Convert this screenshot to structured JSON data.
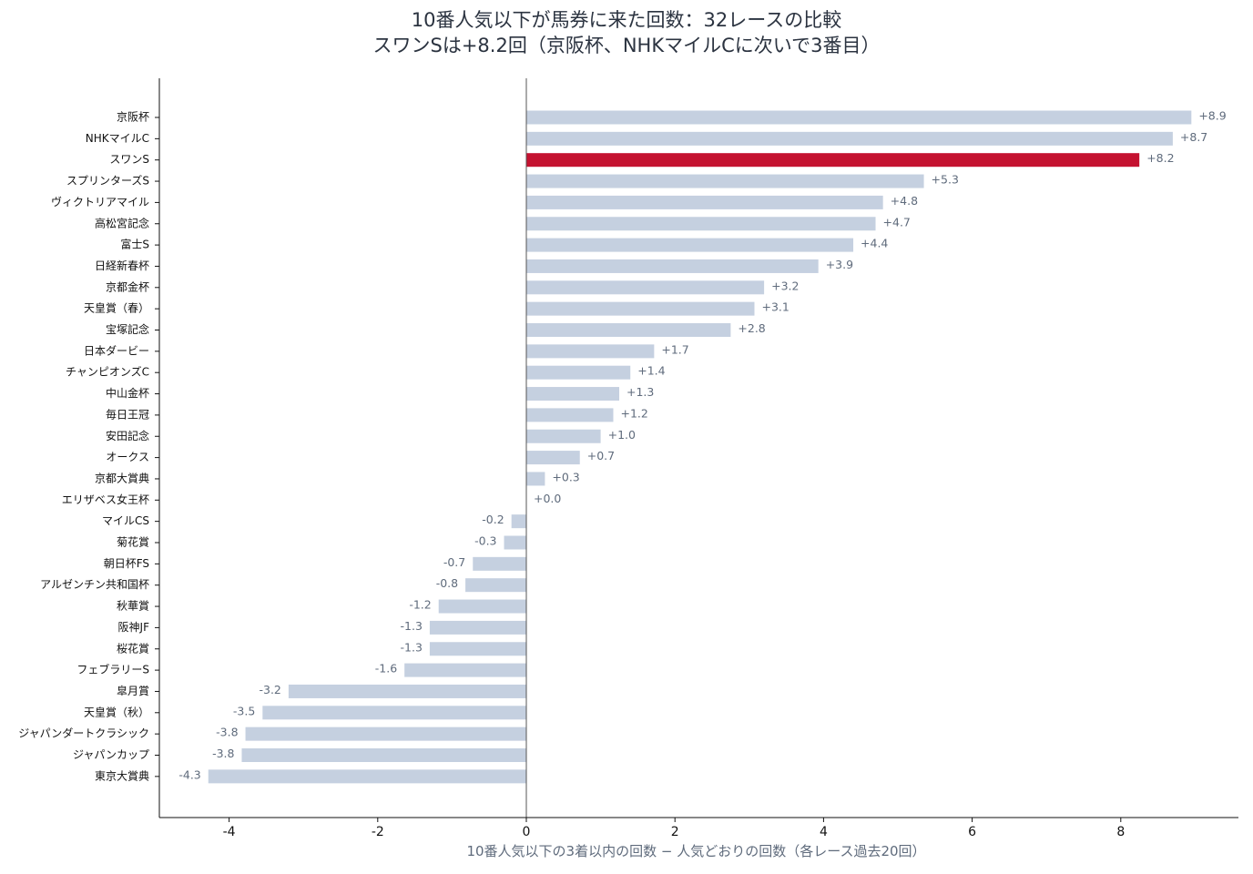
{
  "chart_data": {
    "type": "bar",
    "orientation": "horizontal",
    "title_line1": "10番人気以下が馬券に来た回数：32レースの比較",
    "title_line2": "スワンSは+8.2回（京阪杯、NHKマイルCに次いで3番目）",
    "xlabel": "10番人気以下の3着以内の回数 − 人気どおりの回数（各レース過去20回）",
    "ylabel": "",
    "xlim": [
      -4.9,
      9.6
    ],
    "xticks": [
      -4,
      -2,
      0,
      2,
      4,
      6,
      8
    ],
    "xtick_labels": [
      "-4",
      "-2",
      "0",
      "2",
      "4",
      "6",
      "8"
    ],
    "categories": [
      "京阪杯",
      "NHKマイルC",
      "スワンS",
      "スプリンターズS",
      "ヴィクトリアマイル",
      "高松宮記念",
      "富士S",
      "日経新春杯",
      "京都金杯",
      "天皇賞（春）",
      "宝塚記念",
      "日本ダービー",
      "チャンピオンズC",
      "中山金杯",
      "毎日王冠",
      "安田記念",
      "オークス",
      "京都大賞典",
      "エリザベス女王杯",
      "マイルCS",
      "菊花賞",
      "朝日杯FS",
      "アルゼンチン共和国杯",
      "秋華賞",
      "阪神JF",
      "桜花賞",
      "フェブラリーS",
      "皐月賞",
      "天皇賞（秋）",
      "ジャパンダートクラシック",
      "ジャパンカップ",
      "東京大賞典"
    ],
    "values": [
      8.95,
      8.7,
      8.25,
      5.35,
      4.8,
      4.7,
      4.4,
      3.93,
      3.2,
      3.07,
      2.75,
      1.72,
      1.4,
      1.25,
      1.17,
      1.0,
      0.72,
      0.25,
      0.0,
      -0.2,
      -0.3,
      -0.72,
      -0.82,
      -1.18,
      -1.3,
      -1.3,
      -1.64,
      -3.2,
      -3.55,
      -3.78,
      -3.83,
      -4.28
    ],
    "value_labels": [
      "+8.9",
      "+8.7",
      "+8.2",
      "+5.3",
      "+4.8",
      "+4.7",
      "+4.4",
      "+3.9",
      "+3.2",
      "+3.1",
      "+2.8",
      "+1.7",
      "+1.4",
      "+1.3",
      "+1.2",
      "+1.0",
      "+0.7",
      "+0.3",
      "+0.0",
      "-0.2",
      "-0.3",
      "-0.7",
      "-0.8",
      "-1.2",
      "-1.3",
      "-1.3",
      "-1.6",
      "-3.2",
      "-3.5",
      "-3.8",
      "-3.8",
      "-4.3"
    ],
    "highlight": "スワンS",
    "colors": {
      "bar": "#c5d0e0",
      "highlight_bar": "#c41230",
      "label": "#5f6b7c",
      "highlight_label": "#c41230",
      "axis": "#111111",
      "zero_line": "#555555",
      "title": "#2b3340"
    },
    "grid": false
  }
}
